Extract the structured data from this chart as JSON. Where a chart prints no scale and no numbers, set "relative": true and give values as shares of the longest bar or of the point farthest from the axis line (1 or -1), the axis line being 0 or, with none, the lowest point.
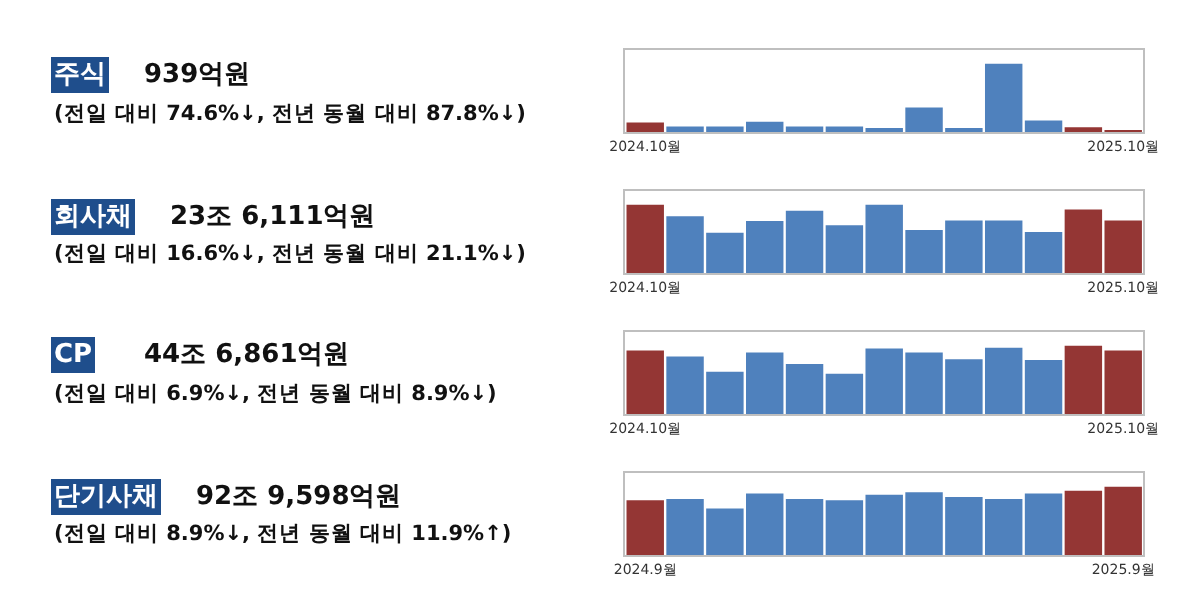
{
  "chart_data": [
    {
      "type": "bar",
      "annotations": [
        "주식",
        "939억원",
        "(전일 대비 74.6%↓, 전년 동월 대비 87.8%↓)"
      ],
      "relative": true,
      "categories": [
        "2024.10월",
        null,
        null,
        null,
        null,
        null,
        null,
        null,
        null,
        null,
        null,
        null,
        "2025.10월"
      ],
      "values": [
        0.14,
        0.08,
        0.08,
        0.15,
        0.08,
        0.08,
        0.06,
        0.36,
        0.06,
        1,
        0.17,
        0.07,
        0.01
      ],
      "colors": [
        "#943634",
        "#4f81bd",
        "#4f81bd",
        "#4f81bd",
        "#4f81bd",
        "#4f81bd",
        "#4f81bd",
        "#4f81bd",
        "#4f81bd",
        "#4f81bd",
        "#4f81bd",
        "#943634",
        "#943634"
      ]
    },
    {
      "type": "bar",
      "annotations": [
        "회사채",
        "23조 6,111억원",
        "(전일 대비 16.6%↓, 전년 동월 대비 21.1%↓)"
      ],
      "relative": true,
      "categories": [
        "2024.10월",
        null,
        null,
        null,
        null,
        null,
        null,
        null,
        null,
        null,
        null,
        null,
        "2025.10월"
      ],
      "values": [
        1,
        0.83,
        0.59,
        0.76,
        0.91,
        0.7,
        1,
        0.63,
        0.77,
        0.77,
        0.6,
        0.93,
        0.77
      ],
      "colors": [
        "#943634",
        "#4f81bd",
        "#4f81bd",
        "#4f81bd",
        "#4f81bd",
        "#4f81bd",
        "#4f81bd",
        "#4f81bd",
        "#4f81bd",
        "#4f81bd",
        "#4f81bd",
        "#943634",
        "#943634"
      ]
    },
    {
      "type": "bar",
      "annotations": [
        "CP",
        "44조 6,861억원",
        "(전일 대비 6.9%↓, 전년 동월 대비 8.9%↓)"
      ],
      "relative": true,
      "categories": [
        "2024.10월",
        null,
        null,
        null,
        null,
        null,
        null,
        null,
        null,
        null,
        null,
        null,
        "2025.10월"
      ],
      "values": [
        0.93,
        0.84,
        0.62,
        0.9,
        0.73,
        0.59,
        0.96,
        0.9,
        0.8,
        0.97,
        0.79,
        1,
        0.93
      ],
      "colors": [
        "#943634",
        "#4f81bd",
        "#4f81bd",
        "#4f81bd",
        "#4f81bd",
        "#4f81bd",
        "#4f81bd",
        "#4f81bd",
        "#4f81bd",
        "#4f81bd",
        "#4f81bd",
        "#943634",
        "#943634"
      ]
    },
    {
      "type": "bar",
      "annotations": [
        "단기사채",
        "92조 9,598억원",
        "(전일 대비 8.9%↓, 전년 동월 대비 11.9%↑)"
      ],
      "relative": true,
      "categories": [
        "2024.9월",
        null,
        null,
        null,
        null,
        null,
        null,
        null,
        null,
        null,
        null,
        null,
        "2025.9월"
      ],
      "values": [
        0.8,
        0.82,
        0.68,
        0.9,
        0.82,
        0.8,
        0.88,
        0.92,
        0.85,
        0.82,
        0.9,
        0.94,
        1
      ],
      "colors": [
        "#943634",
        "#4f81bd",
        "#4f81bd",
        "#4f81bd",
        "#4f81bd",
        "#4f81bd",
        "#4f81bd",
        "#4f81bd",
        "#4f81bd",
        "#4f81bd",
        "#4f81bd",
        "#943634",
        "#943634"
      ]
    }
  ]
}
